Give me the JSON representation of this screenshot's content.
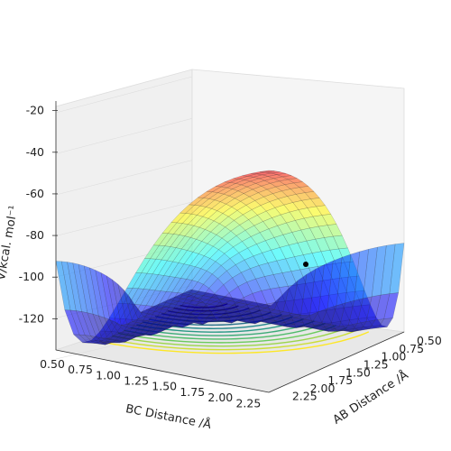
{
  "chart_data": {
    "type": "surface",
    "title": "",
    "xlabel": "AB Distance /Å",
    "ylabel": "BC Distance /Å",
    "zlabel": "V/kcal. mol⁻¹",
    "x_ticks": [
      "0.50",
      "0.75",
      "1.00",
      "1.25",
      "1.50",
      "1.75",
      "2.00",
      "2.25"
    ],
    "y_ticks": [
      "0.50",
      "0.75",
      "1.00",
      "1.25",
      "1.50",
      "1.75",
      "2.00",
      "2.25"
    ],
    "z_ticks": [
      "-20",
      "-40",
      "-60",
      "-80",
      "-100",
      "-120"
    ],
    "xlim": [
      0.5,
      2.4
    ],
    "ylim": [
      0.5,
      2.4
    ],
    "zlim": [
      -135,
      -18
    ],
    "grid": true,
    "colormap": "jet",
    "contour_colormap": "viridis",
    "marker_point": {
      "x": 0.74,
      "y": 2.3,
      "z": -92
    },
    "colors": {
      "marker": "#000000",
      "pane": "#f2f2f2",
      "grid": "#dddddd"
    }
  }
}
